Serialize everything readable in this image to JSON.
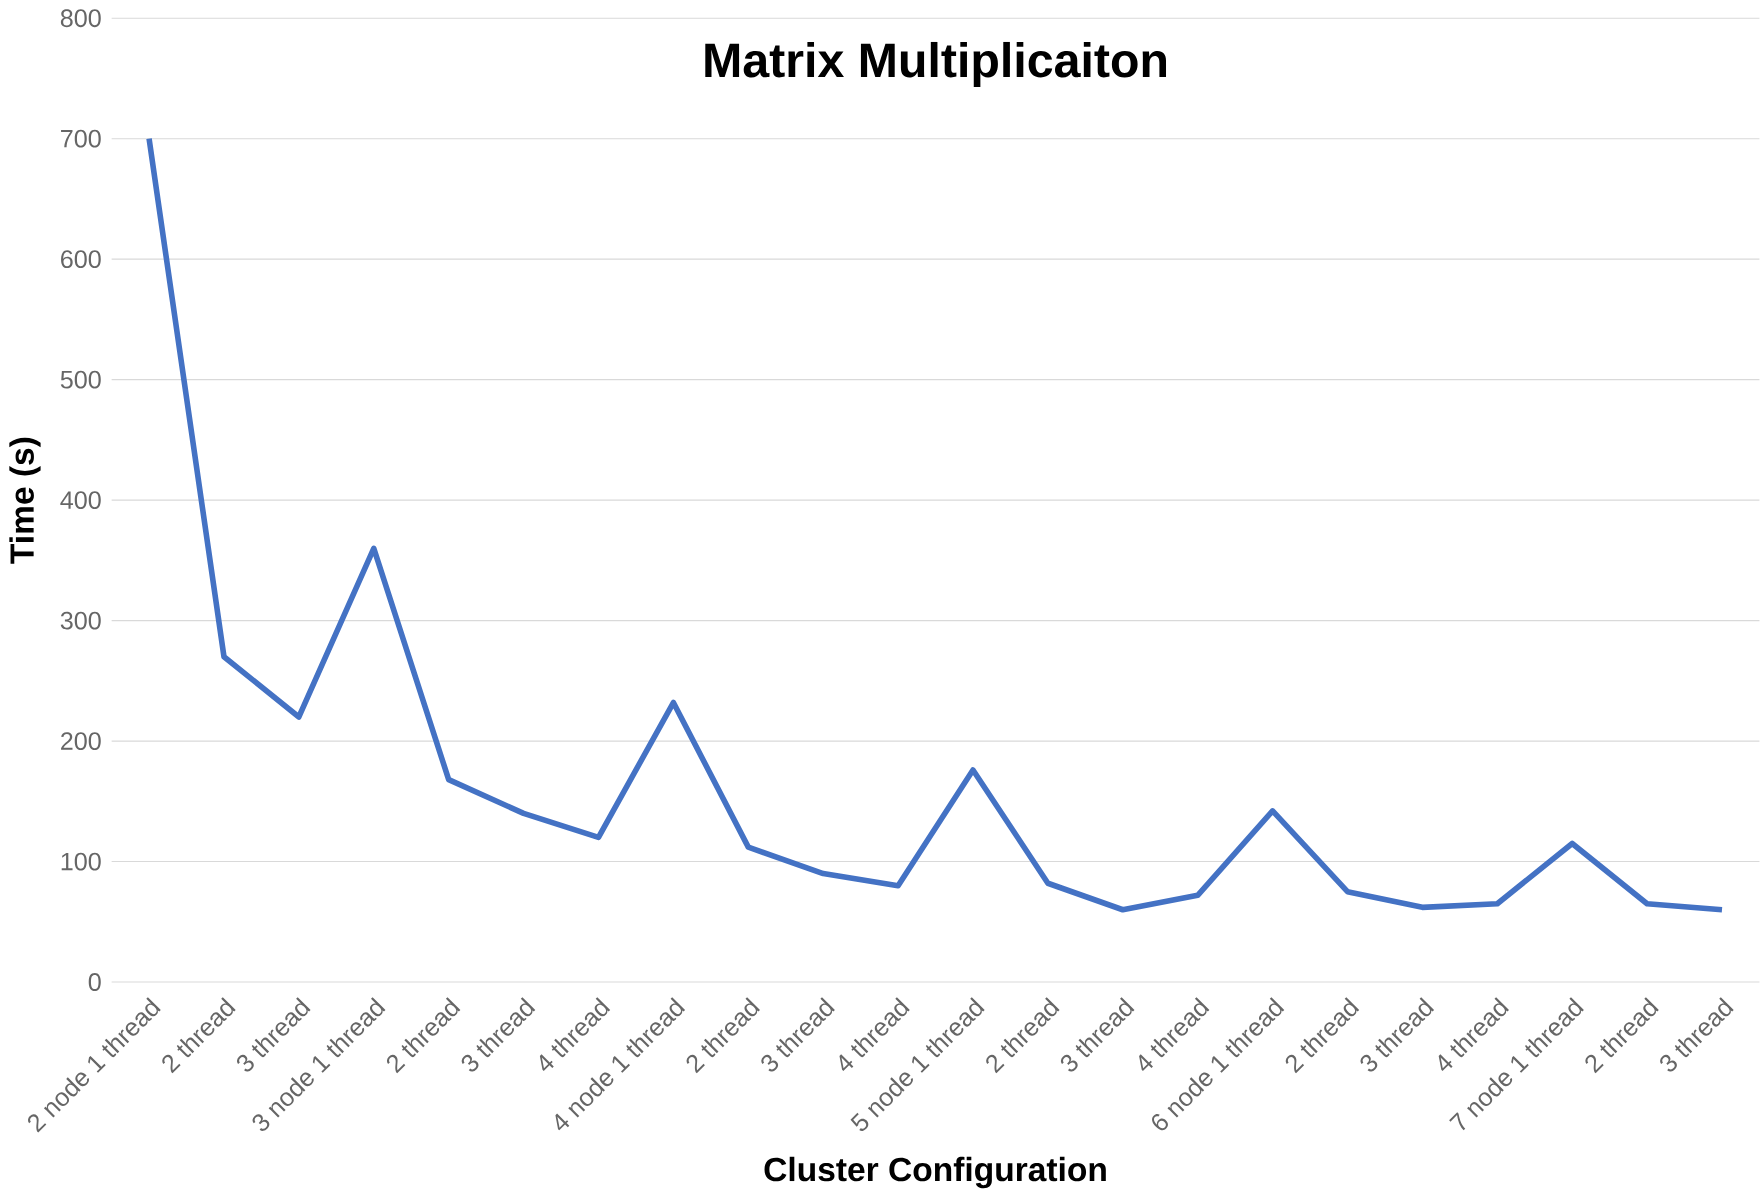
{
  "chart_data": {
    "type": "line",
    "title": "Matrix Multiplicaiton",
    "xlabel": "Cluster Configuration",
    "ylabel": "Time (s)",
    "categories": [
      "2 node 1 thread",
      "2 thread",
      "3 thread",
      "3 node 1 thread",
      "2 thread",
      "3 thread",
      "4 thread",
      "4 node 1 thread",
      "2 thread",
      "3 thread",
      "4 thread",
      "5 node 1 thread",
      "2 thread",
      "3 thread",
      "4 thread",
      "6 node 1 thread",
      "2 thread",
      "3 thread",
      "4 thread",
      "7 node 1 thread",
      "2 thread",
      "3 thread"
    ],
    "series": [
      {
        "color": "#4472c4",
        "values": [
          700,
          270,
          220,
          360,
          168,
          140,
          120,
          232,
          112,
          90,
          80,
          176,
          82,
          60,
          72,
          142,
          75,
          62,
          65,
          115,
          65,
          60
        ]
      }
    ],
    "ylim": [
      0,
      800
    ],
    "yticks": [
      0,
      100,
      200,
      300,
      400,
      500,
      600,
      700,
      800
    ],
    "grid": "y",
    "marker": "none",
    "line_style": "solid"
  }
}
